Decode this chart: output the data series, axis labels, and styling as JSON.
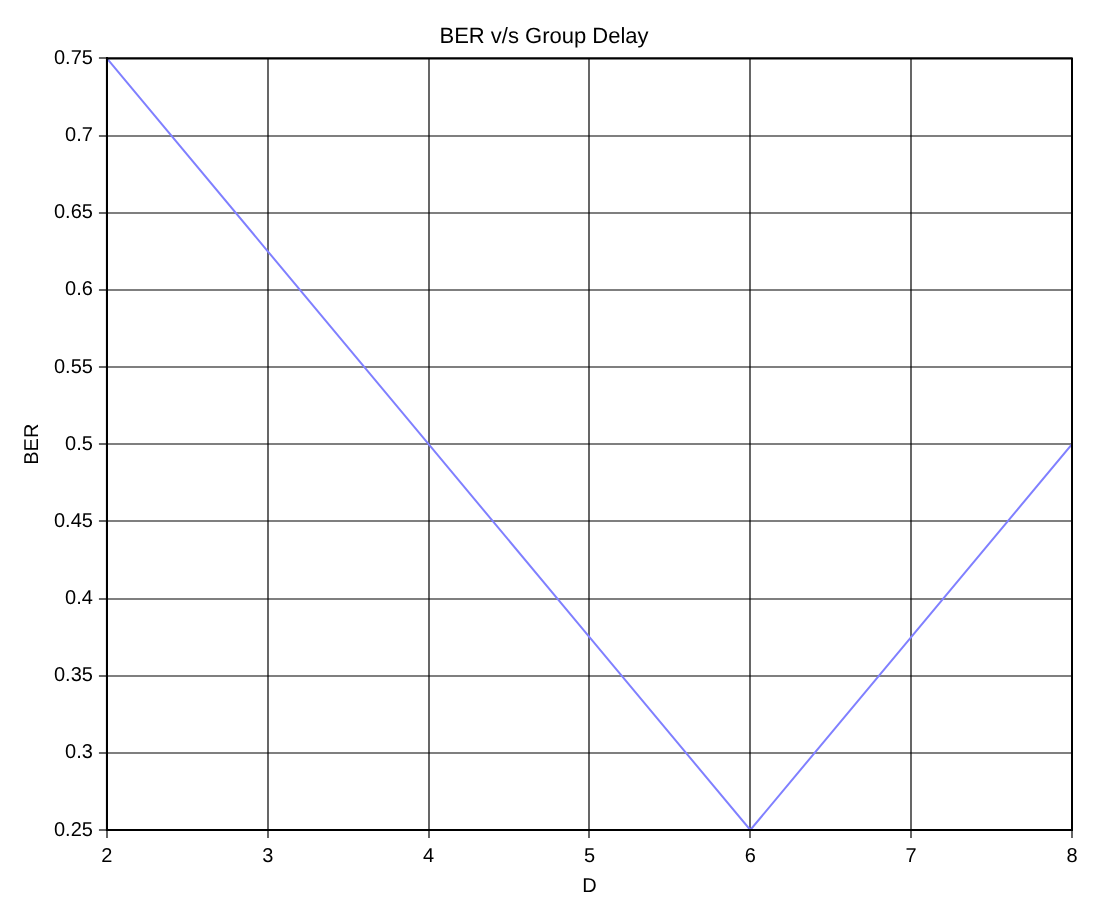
{
  "chart_data": {
    "type": "line",
    "title": "BER v/s Group Delay",
    "xlabel": "D",
    "ylabel": "BER",
    "x": [
      2,
      3,
      4,
      5,
      6,
      7,
      8
    ],
    "series": [
      {
        "color": "#8080ff",
        "values": [
          0.75,
          0.625,
          0.5,
          0.375,
          0.25,
          0.375,
          0.5
        ]
      }
    ],
    "xlim": [
      2,
      8
    ],
    "xticks": [
      2,
      3,
      4,
      5,
      6,
      7,
      8
    ],
    "ylim": [
      0.25,
      0.75
    ],
    "yticks": [
      0.25,
      0.3,
      0.35,
      0.4,
      0.45,
      0.5,
      0.55,
      0.6,
      0.65,
      0.7,
      0.75
    ],
    "grid": true,
    "legend": false,
    "marker": "none",
    "line_style": "solid"
  }
}
